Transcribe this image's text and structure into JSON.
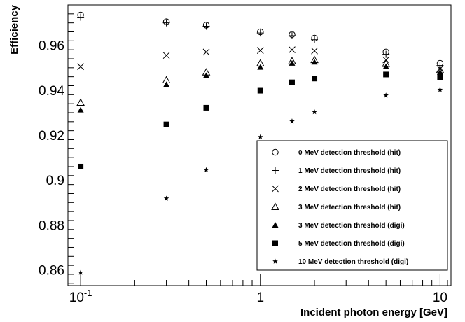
{
  "chart_data": {
    "type": "scatter",
    "xscale": "log",
    "xlim": [
      0.085,
      11.5
    ],
    "ylim": [
      0.853,
      0.978
    ],
    "xlabel": "Incident photon energy [GeV]",
    "ylabel": "Efficiency",
    "title": "",
    "grid": false,
    "legend_position": "bottom-right",
    "x_ticks": [
      {
        "value": 0.1,
        "label": "10",
        "sup": "-1"
      },
      {
        "value": 1,
        "label": "1",
        "sup": ""
      },
      {
        "value": 10,
        "label": "10",
        "sup": ""
      }
    ],
    "y_ticks": [
      {
        "value": 0.86,
        "label": "0.86"
      },
      {
        "value": 0.88,
        "label": "0.88"
      },
      {
        "value": 0.9,
        "label": "0.9"
      },
      {
        "value": 0.92,
        "label": "0.92"
      },
      {
        "value": 0.94,
        "label": "0.94"
      },
      {
        "value": 0.96,
        "label": "0.96"
      }
    ],
    "x": [
      0.1,
      0.3,
      0.5,
      1,
      1.5,
      2,
      5,
      10
    ],
    "series": [
      {
        "name": "0 MeV detection threshold (hit)",
        "marker": "open-circle",
        "values": [
          0.9735,
          0.9705,
          0.969,
          0.966,
          0.9648,
          0.9632,
          0.957,
          0.952
        ]
      },
      {
        "name": "1 MeV detection threshold (hit)",
        "marker": "plus",
        "values": [
          0.9725,
          0.97,
          0.9685,
          0.9655,
          0.9643,
          0.9625,
          0.956,
          0.951
        ]
      },
      {
        "name": "2 MeV detection threshold (hit)",
        "marker": "cross",
        "values": [
          0.9505,
          0.9555,
          0.957,
          0.9577,
          0.958,
          0.9575,
          0.9535,
          0.9495
        ]
      },
      {
        "name": "3 MeV detection threshold (hit)",
        "marker": "open-triangle",
        "values": [
          0.9345,
          0.9445,
          0.948,
          0.952,
          0.953,
          0.9535,
          0.9518,
          0.949
        ]
      },
      {
        "name": "3 MeV detection threshold (digi)",
        "marker": "filled-triangle",
        "values": [
          0.9312,
          0.9425,
          0.9465,
          0.9502,
          0.952,
          0.9525,
          0.9505,
          0.948
        ]
      },
      {
        "name": "5 MeV detection threshold (digi)",
        "marker": "filled-square",
        "values": [
          0.906,
          0.9248,
          0.9322,
          0.9398,
          0.9435,
          0.9452,
          0.947,
          0.9458
        ]
      },
      {
        "name": "10 MeV detection threshold (digi)",
        "marker": "star",
        "values": [
          0.8588,
          0.8918,
          0.9045,
          0.9192,
          0.9262,
          0.9303,
          0.9377,
          0.9402
        ]
      }
    ]
  }
}
